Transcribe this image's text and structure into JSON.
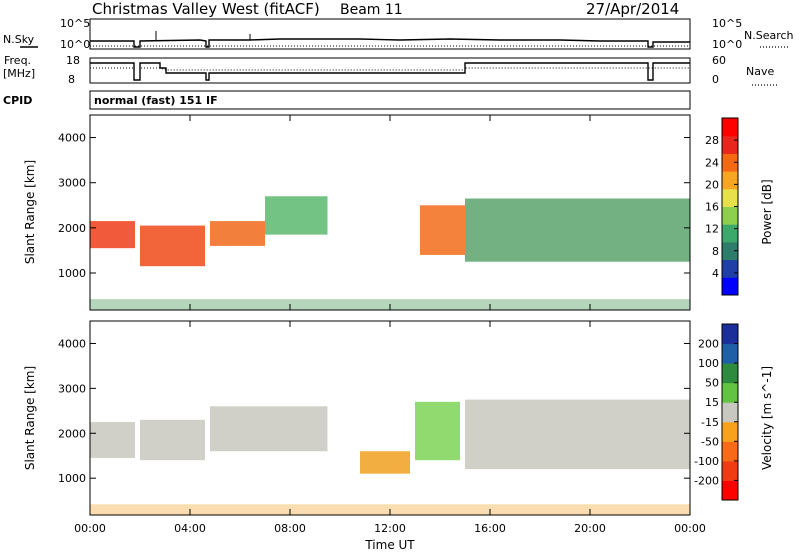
{
  "header": {
    "station": "Christmas Valley West (fitACF)",
    "beam": "Beam 11",
    "date": "27/Apr/2014"
  },
  "strip_panels": {
    "nsky": {
      "label": "N.Sky",
      "ticks": [
        "10^5",
        "10^0"
      ]
    },
    "nsearch": {
      "label": "N.Search",
      "ticks": [
        "10^5",
        "10^0"
      ]
    },
    "freq": {
      "label_1": "Freq.",
      "label_2": "[MHz]",
      "ticks": [
        "18",
        "8"
      ]
    },
    "nave": {
      "label": "Nave",
      "ticks": [
        "60",
        "0"
      ]
    },
    "cpid": {
      "label": "CPID",
      "value": "normal (fast) 151 IF"
    }
  },
  "chart_data": [
    {
      "type": "heatmap",
      "name": "power",
      "ylabel": "Slant Range [km]",
      "yticks": [
        1000,
        2000,
        3000,
        4000
      ],
      "ylim": [
        180,
        4500
      ],
      "xlim": [
        0,
        24
      ],
      "colorbar": {
        "label": "Power [dB]",
        "ticks": [
          "28",
          "24",
          "20",
          "16",
          "12",
          "8",
          "4"
        ],
        "colors": [
          "#0000ff",
          "#1f3fa6",
          "#2e7d6a",
          "#3ca86b",
          "#8dd050",
          "#e6e04a",
          "#f6a623",
          "#f46a14",
          "#e8261c",
          "#ff0000"
        ]
      },
      "bands": [
        {
          "t0": 0.0,
          "t1": 1.8,
          "r0": 1550,
          "r1": 2150,
          "color": "#ef3d17"
        },
        {
          "t0": 2.0,
          "t1": 4.6,
          "r0": 1150,
          "r1": 2050,
          "color": "#f04a18"
        },
        {
          "t0": 4.8,
          "t1": 7.0,
          "r0": 1600,
          "r1": 2150,
          "color": "#f06a1a"
        },
        {
          "t0": 7.0,
          "t1": 9.5,
          "r0": 1850,
          "r1": 2700,
          "color": "#5bb86e"
        },
        {
          "t0": 13.2,
          "t1": 15.0,
          "r0": 1400,
          "r1": 2500,
          "color": "#f36c1a"
        },
        {
          "t0": 15.0,
          "t1": 24.0,
          "r0": 1250,
          "r1": 2650,
          "color": "#5aa36c"
        }
      ]
    },
    {
      "type": "heatmap",
      "name": "velocity",
      "ylabel": "Slant Range [km]",
      "yticks": [
        1000,
        2000,
        3000,
        4000
      ],
      "ylim": [
        180,
        4500
      ],
      "xlim": [
        0,
        24
      ],
      "xlabel": "Time UT",
      "xticks": [
        "00:00",
        "04:00",
        "08:00",
        "12:00",
        "16:00",
        "20:00",
        "00:00"
      ],
      "colorbar": {
        "label": "Velocity [m s^-1]",
        "ticks": [
          "200",
          "100",
          "50",
          "15",
          "-15",
          "-50",
          "-100",
          "-200"
        ],
        "colors": [
          "#ff0000",
          "#f03c14",
          "#f66a18",
          "#f7a11d",
          "#c8c8c0",
          "#63c342",
          "#2e8a3c",
          "#1f5fa8",
          "#1b2f9a"
        ]
      },
      "bands": [
        {
          "t0": 0.0,
          "t1": 1.8,
          "r0": 1450,
          "r1": 2250,
          "color": "#c8c8c0"
        },
        {
          "t0": 2.0,
          "t1": 4.6,
          "r0": 1400,
          "r1": 2300,
          "color": "#c8c8c0"
        },
        {
          "t0": 4.8,
          "t1": 9.5,
          "r0": 1600,
          "r1": 2600,
          "color": "#c8c8c0"
        },
        {
          "t0": 10.8,
          "t1": 12.8,
          "r0": 1100,
          "r1": 1600,
          "color": "#f0a020"
        },
        {
          "t0": 13.0,
          "t1": 14.8,
          "r0": 1400,
          "r1": 2700,
          "color": "#7cd456"
        },
        {
          "t0": 15.0,
          "t1": 24.0,
          "r0": 1200,
          "r1": 2750,
          "color": "#c8c8c0"
        }
      ]
    }
  ]
}
